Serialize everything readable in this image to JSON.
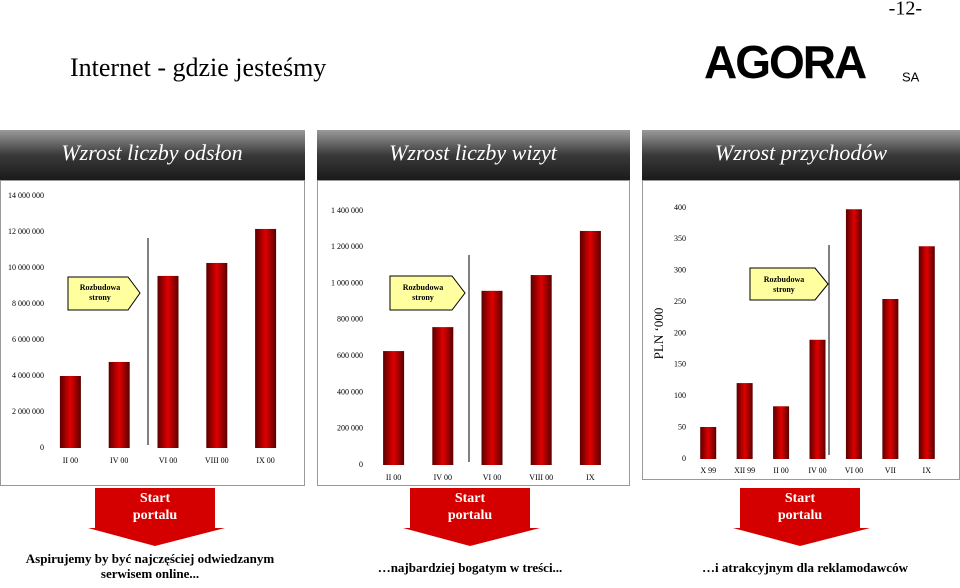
{
  "page_number": "-12-",
  "title": "Internet - gdzie jesteśmy",
  "logo": {
    "text": "AGORA",
    "suffix": "SA"
  },
  "chart_data": [
    {
      "type": "bar",
      "header": "Wzrost liczby odsłon",
      "categories": [
        "II 00",
        "IV 00",
        "VI 00",
        "VIII 00",
        "IX 00"
      ],
      "values": [
        4000000,
        4780000,
        9560000,
        10280000,
        12170000
      ],
      "color": "#e00000",
      "ylim": [
        0,
        14000000
      ],
      "yticks": [
        0,
        {
          "value": 2000000,
          "label": "2 000 000"
        },
        {
          "value": 4000000,
          "label": "4 000 000"
        },
        {
          "value": 6000000,
          "label": "6 000 000"
        },
        {
          "value": 8000000,
          "label": "8 000 000"
        },
        {
          "value": 10000000,
          "label": "10 000 000"
        },
        {
          "value": 12000000,
          "label": "12 000 000"
        },
        {
          "value": 14000000,
          "label": "14 000 000"
        }
      ],
      "annotation": "Rozbudowa strony",
      "start_label": "Start portalu",
      "caption": "Aspirujemy by być najczęściej odwiedzanym serwisem online..."
    },
    {
      "type": "bar",
      "header": "Wzrost liczby wizyt",
      "categories": [
        "II 00",
        "IV 00",
        "VI 00",
        "VIII 00",
        "IX"
      ],
      "values": [
        628000,
        760000,
        960000,
        1047000,
        1290000
      ],
      "color": "#e00000",
      "ylim": [
        0,
        1400000
      ],
      "yticks": [
        0,
        {
          "value": 200000,
          "label": "200 000"
        },
        {
          "value": 400000,
          "label": "400 000"
        },
        {
          "value": 600000,
          "label": "600 000"
        },
        {
          "value": 800000,
          "label": "800 000"
        },
        {
          "value": 1000000,
          "label": "1 000 000"
        },
        {
          "value": 1200000,
          "label": "1 200 000"
        },
        {
          "value": 1400000,
          "label": "1 400 000"
        }
      ],
      "annotation": "Rozbudowa strony",
      "start_label": "Start portalu",
      "caption": "…najbardziej bogatym w treści..."
    },
    {
      "type": "bar",
      "header": "Wzrost przychodów",
      "ylabel": "PLN ‘000",
      "categories": [
        "X 99",
        "XII 99",
        "II 00",
        "IV 00",
        "VI 00",
        "VII",
        "IX"
      ],
      "values": [
        51,
        121,
        84,
        190,
        398,
        255,
        339
      ],
      "color": "#e00000",
      "ylim": [
        0,
        400
      ],
      "yticks": [
        0,
        50,
        100,
        150,
        200,
        250,
        300,
        350,
        400
      ],
      "annotation": "Rozbudowa strony",
      "start_label": "Start portalu",
      "caption": "…i atrakcyjnym dla reklamodawców"
    }
  ]
}
